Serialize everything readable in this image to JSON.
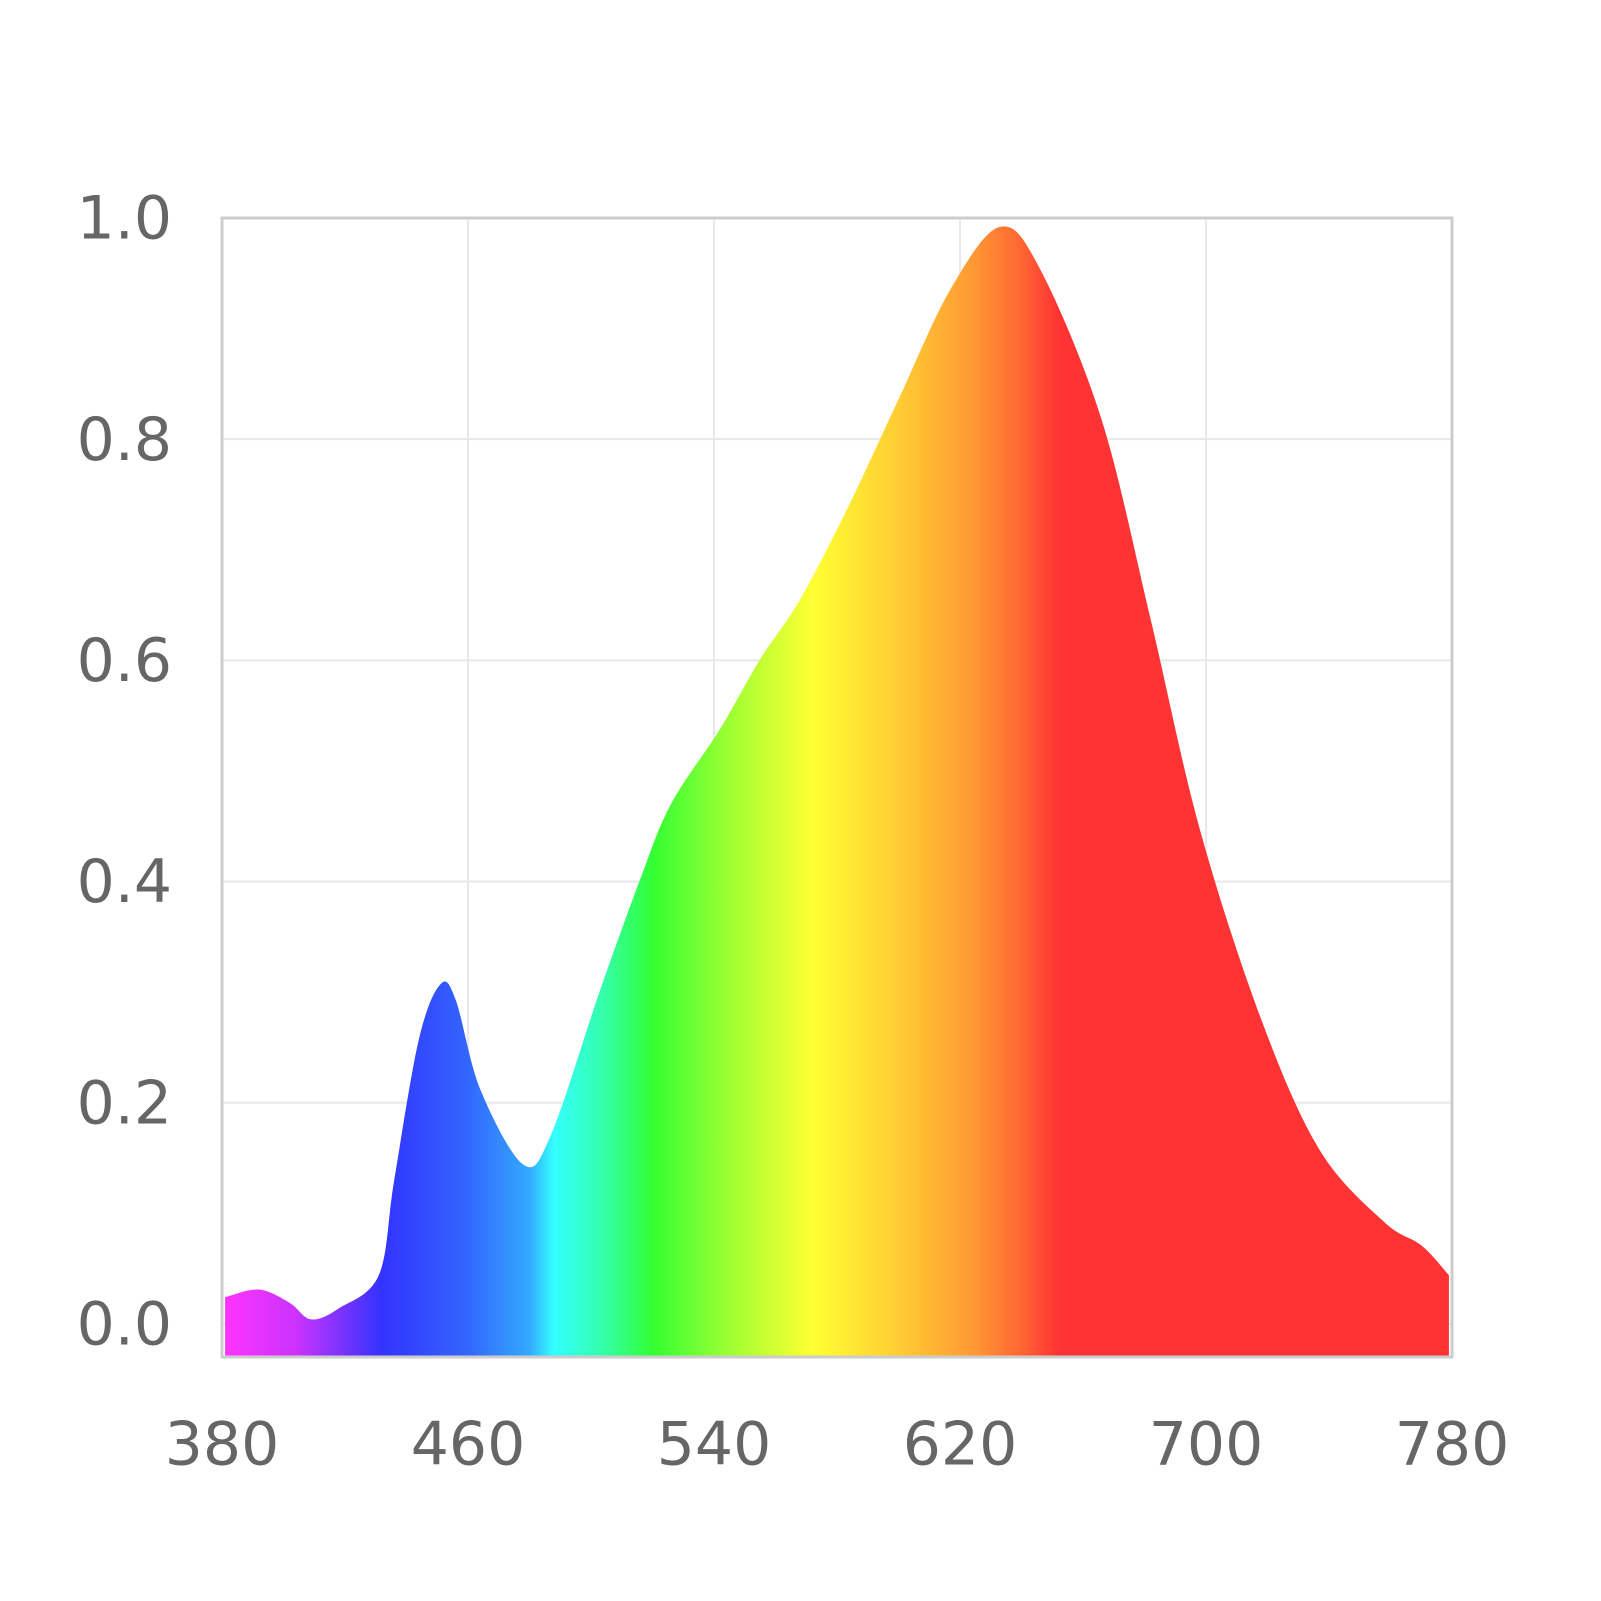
{
  "chart_data": {
    "type": "area",
    "x": [
      381,
      392,
      402,
      409,
      418,
      431,
      436,
      444,
      451,
      456,
      464,
      478,
      487,
      503,
      516,
      526,
      542,
      555,
      568,
      584,
      600,
      617,
      633,
      646,
      666,
      682,
      698,
      718,
      737,
      758,
      770,
      779
    ],
    "y": [
      0.024,
      0.031,
      0.019,
      0.004,
      0.014,
      0.044,
      0.13,
      0.257,
      0.307,
      0.293,
      0.212,
      0.144,
      0.171,
      0.302,
      0.402,
      0.47,
      0.538,
      0.601,
      0.655,
      0.741,
      0.836,
      0.936,
      0.992,
      0.954,
      0.818,
      0.637,
      0.447,
      0.275,
      0.157,
      0.092,
      0.071,
      0.044
    ],
    "xlim": [
      380,
      780
    ],
    "ylim": [
      -0.03,
      1.0
    ],
    "xticks": [
      380,
      460,
      540,
      620,
      700,
      780
    ],
    "yticks": [
      {
        "value": 0,
        "label": "0.0"
      },
      0.2,
      0.4,
      0.6,
      0.8,
      {
        "value": 1,
        "label": "1.0"
      }
    ],
    "grid": true
  }
}
